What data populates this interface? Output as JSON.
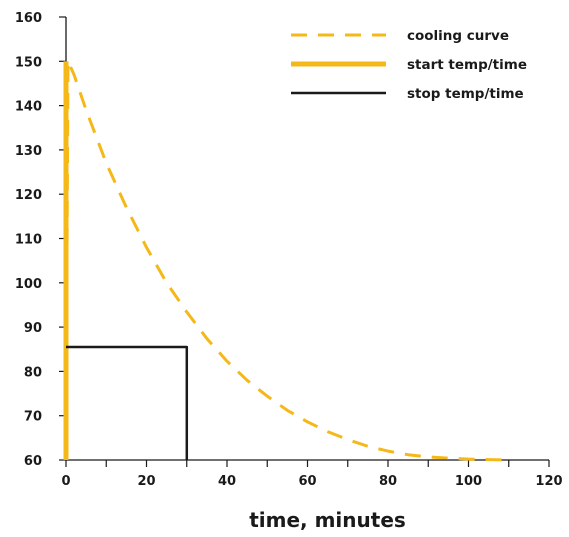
{
  "chart_data": {
    "type": "line",
    "title": "",
    "xlabel": "time, minutes",
    "ylabel": "",
    "xlim": [
      0,
      120
    ],
    "ylim": [
      60,
      160
    ],
    "x_ticks": [
      0,
      20,
      40,
      60,
      80,
      100,
      120
    ],
    "y_ticks": [
      60,
      70,
      80,
      90,
      100,
      110,
      120,
      130,
      140,
      150,
      160
    ],
    "grid": false,
    "legend_position": "top-right",
    "series": [
      {
        "name": "cooling curve",
        "style": "dashed",
        "color": "#F5B819",
        "x": [
          0,
          0.5,
          2,
          5,
          10,
          15,
          20,
          25,
          30,
          35,
          40,
          45,
          50,
          55,
          60,
          65,
          70,
          75,
          80,
          85,
          90,
          95,
          100,
          105,
          110
        ],
        "y": [
          60,
          150,
          147,
          139,
          127,
          117,
          108,
          100,
          93.4,
          87.4,
          82.3,
          78.0,
          74.4,
          71.2,
          68.6,
          66.4,
          64.6,
          63.1,
          62.0,
          61.2,
          60.7,
          60.4,
          60.2,
          60.1,
          60
        ]
      },
      {
        "name": "start temp/time",
        "style": "solid-thick",
        "color": "#F5B819",
        "x": [
          0,
          0
        ],
        "y": [
          60,
          150
        ]
      },
      {
        "name": "stop temp/time",
        "style": "solid",
        "color": "#1a1a1a",
        "x": [
          0,
          30,
          30
        ],
        "y": [
          85.5,
          85.5,
          60
        ]
      }
    ]
  }
}
